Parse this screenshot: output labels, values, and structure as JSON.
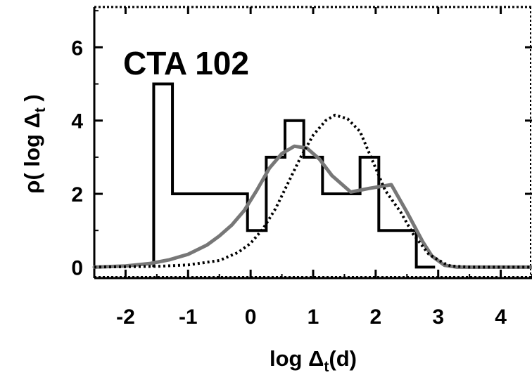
{
  "chart_data": {
    "type": "line",
    "title": "CTA 102",
    "xlabel_main": "log Δ",
    "xlabel_sub": "t",
    "xlabel_tail": "(d)",
    "ylabel_main": "ρ( log Δ",
    "ylabel_sub": "t",
    "ylabel_tail": " )",
    "xlim": [
      -2.5,
      4.5
    ],
    "ylim": [
      -0.3,
      7.1
    ],
    "x_ticks": [
      -2,
      -1,
      0,
      1,
      2,
      3,
      4
    ],
    "y_ticks": [
      0,
      2,
      4,
      6
    ],
    "grid": false,
    "series": [
      {
        "style": "histogram",
        "color": "#000000",
        "bin_edges": [
          -1.55,
          -1.25,
          -0.95,
          -0.65,
          -0.35,
          -0.05,
          0.25,
          0.55,
          0.85,
          1.15,
          1.45,
          1.75,
          2.05,
          2.35,
          2.65,
          2.95
        ],
        "counts": [
          5,
          2,
          2,
          2,
          2,
          1,
          3,
          4,
          3,
          2,
          2,
          3,
          1,
          1,
          0
        ]
      },
      {
        "style": "solid",
        "color": "#777777",
        "x": [
          -2.5,
          -2.0,
          -1.6,
          -1.3,
          -1.0,
          -0.7,
          -0.5,
          -0.3,
          -0.1,
          0.1,
          0.3,
          0.5,
          0.7,
          0.9,
          1.1,
          1.3,
          1.6,
          1.9,
          2.25,
          2.5,
          2.75,
          2.9,
          3.1,
          3.3,
          3.6,
          4.0,
          4.5
        ],
        "y": [
          0,
          0.03,
          0.1,
          0.2,
          0.35,
          0.6,
          0.85,
          1.15,
          1.55,
          2.1,
          2.7,
          3.1,
          3.3,
          3.25,
          2.95,
          2.5,
          2.05,
          2.15,
          2.25,
          1.5,
          0.7,
          0.3,
          0.05,
          0,
          0,
          0,
          0
        ]
      },
      {
        "style": "dotted",
        "color": "#000000",
        "x": [
          -2.5,
          -1.5,
          -1.0,
          -0.5,
          -0.2,
          0.0,
          0.2,
          0.4,
          0.6,
          0.8,
          1.0,
          1.2,
          1.35,
          1.55,
          1.75,
          1.95,
          2.15,
          2.4,
          2.6,
          2.85,
          3.0,
          3.1,
          3.2,
          3.5,
          4.0,
          4.5
        ],
        "y": [
          0,
          0.02,
          0.06,
          0.18,
          0.4,
          0.65,
          1.05,
          1.6,
          2.3,
          3.0,
          3.6,
          4.0,
          4.15,
          4.05,
          3.7,
          2.9,
          2.1,
          1.5,
          0.9,
          0.35,
          0.2,
          0.1,
          0.03,
          0,
          0,
          0
        ]
      }
    ]
  }
}
